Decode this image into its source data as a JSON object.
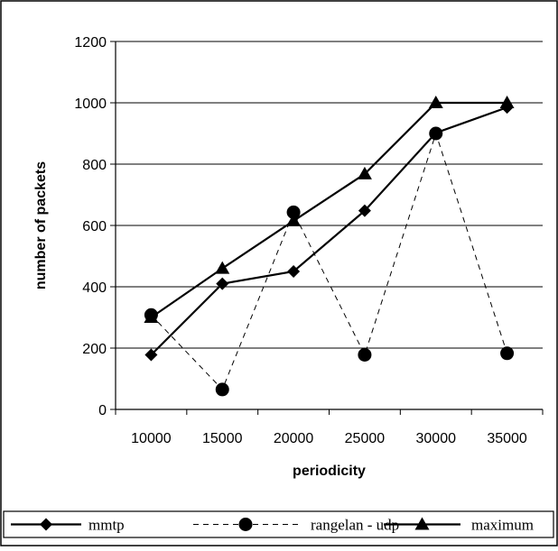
{
  "chart_data": {
    "type": "line",
    "title": "",
    "xlabel": "periodicity",
    "ylabel": "number of packets",
    "categories": [
      "10000",
      "15000",
      "20000",
      "25000",
      "30000",
      "35000"
    ],
    "ylim": [
      0,
      1200
    ],
    "yticks": [
      0,
      200,
      400,
      600,
      800,
      1000,
      1200
    ],
    "grid": "horizontal",
    "legend_position": "bottom",
    "series": [
      {
        "name": "mmtp",
        "values": [
          178,
          410,
          450,
          648,
          902,
          985
        ],
        "marker": "diamond",
        "style": "solid",
        "color": "#000000"
      },
      {
        "name": "rangelan - udp",
        "values": [
          308,
          65,
          643,
          178,
          900,
          183
        ],
        "marker": "circle",
        "style": "dashed",
        "color": "#000000"
      },
      {
        "name": "maximum",
        "values": [
          300,
          460,
          615,
          768,
          1000,
          1000
        ],
        "marker": "triangle",
        "style": "solid",
        "color": "#000000"
      }
    ]
  }
}
